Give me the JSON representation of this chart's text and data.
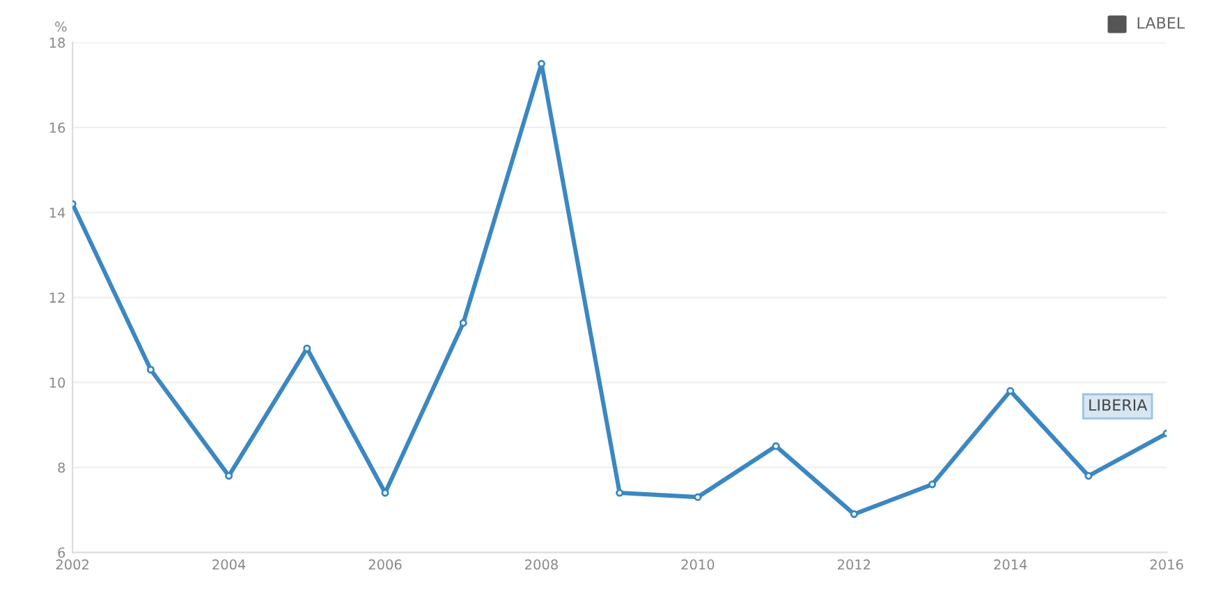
{
  "chart_data": {
    "type": "line",
    "ylabel": "%",
    "x": [
      2002,
      2003,
      2004,
      2005,
      2006,
      2007,
      2008,
      2009,
      2010,
      2011,
      2012,
      2013,
      2014,
      2015,
      2016
    ],
    "series": [
      {
        "name": "LIBERIA",
        "color": "#3b87c2",
        "values": [
          14.2,
          10.3,
          7.8,
          10.8,
          7.4,
          11.4,
          17.5,
          7.4,
          7.3,
          8.5,
          6.9,
          7.6,
          9.8,
          7.8,
          8.8
        ]
      }
    ],
    "xlim": [
      2002,
      2016
    ],
    "xticks": [
      2002,
      2004,
      2006,
      2008,
      2010,
      2012,
      2014,
      2016
    ],
    "ylim": [
      6,
      18
    ],
    "yticks": [
      6,
      8,
      10,
      12,
      14,
      16,
      18
    ],
    "grid": "y",
    "marker": "circle",
    "annotations": [
      "LABEL"
    ]
  }
}
